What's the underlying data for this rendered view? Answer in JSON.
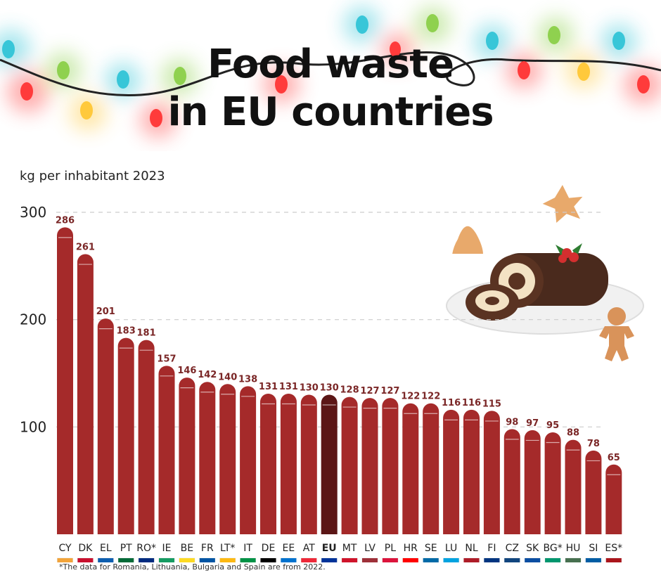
{
  "colors": {
    "bar": "#a52a2a",
    "bar_highlight": "#5b1616",
    "value_label": "#7a2626",
    "grid": "#cccccc"
  },
  "chart_data": {
    "type": "bar",
    "title": "Food waste in EU countries",
    "title_lines": [
      "Food waste",
      "in EU countries"
    ],
    "subtitle": "kg per inhabitant 2023",
    "ylim": [
      0,
      300
    ],
    "yticks": [
      "100",
      "200",
      "300"
    ],
    "grid": true,
    "highlight": "EU",
    "categories": [
      "CY",
      "DK",
      "EL",
      "PT",
      "RO*",
      "IE",
      "BE",
      "FR",
      "LT*",
      "IT",
      "DE",
      "EE",
      "AT",
      "EU",
      "MT",
      "LV",
      "PL",
      "HR",
      "SE",
      "LU",
      "NL",
      "FI",
      "CZ",
      "SK",
      "BG*",
      "HU",
      "SI",
      "ES*"
    ],
    "values": [
      286,
      261,
      201,
      183,
      181,
      157,
      146,
      142,
      140,
      138,
      131,
      131,
      130,
      130,
      128,
      127,
      127,
      122,
      122,
      116,
      116,
      115,
      98,
      97,
      95,
      88,
      78,
      65
    ],
    "footnote": "*The data for Romania, Lithuania, Bulgaria and Spain are from 2022."
  },
  "icons": {
    "lights": "christmas-lights-icon",
    "decoration": "yule-log-cake-icon"
  }
}
